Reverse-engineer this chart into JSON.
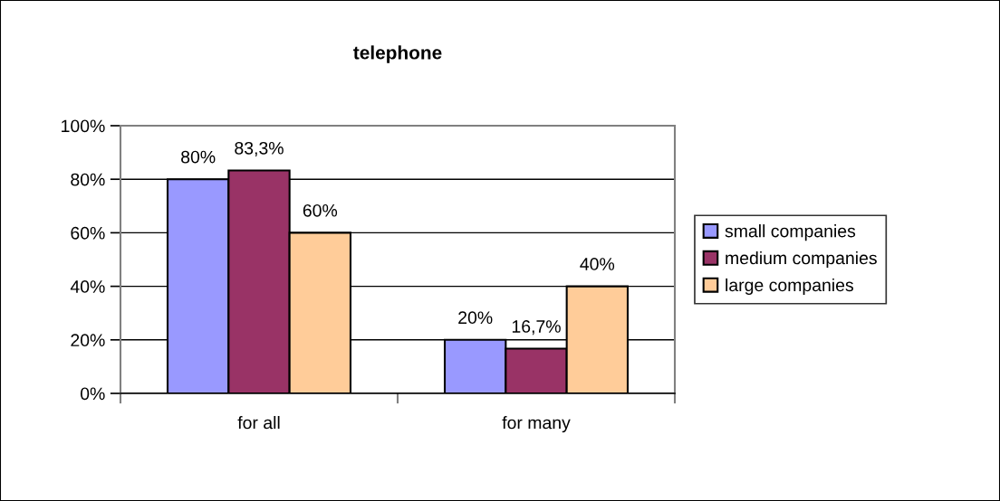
{
  "chart_data": {
    "type": "bar",
    "title": "telephone",
    "categories": [
      "for all",
      "for many"
    ],
    "series": [
      {
        "name": "small companies",
        "color": "#9999ff",
        "values": [
          80,
          20
        ],
        "value_labels": [
          "80%",
          "20%"
        ]
      },
      {
        "name": "medium companies",
        "color": "#993366",
        "values": [
          83.3,
          16.7
        ],
        "value_labels": [
          "83,3%",
          "16,7%"
        ]
      },
      {
        "name": "large companies",
        "color": "#ffcc99",
        "values": [
          60,
          40
        ],
        "value_labels": [
          "60%",
          "40%"
        ]
      }
    ],
    "ylim": [
      0,
      100
    ],
    "yticks": [
      {
        "value": 0,
        "label": "0%"
      },
      {
        "value": 20,
        "label": "20%"
      },
      {
        "value": 40,
        "label": "40%"
      },
      {
        "value": 60,
        "label": "60%"
      },
      {
        "value": 80,
        "label": "80%"
      },
      {
        "value": 100,
        "label": "100%"
      }
    ],
    "grid": "y",
    "legend": "right"
  }
}
